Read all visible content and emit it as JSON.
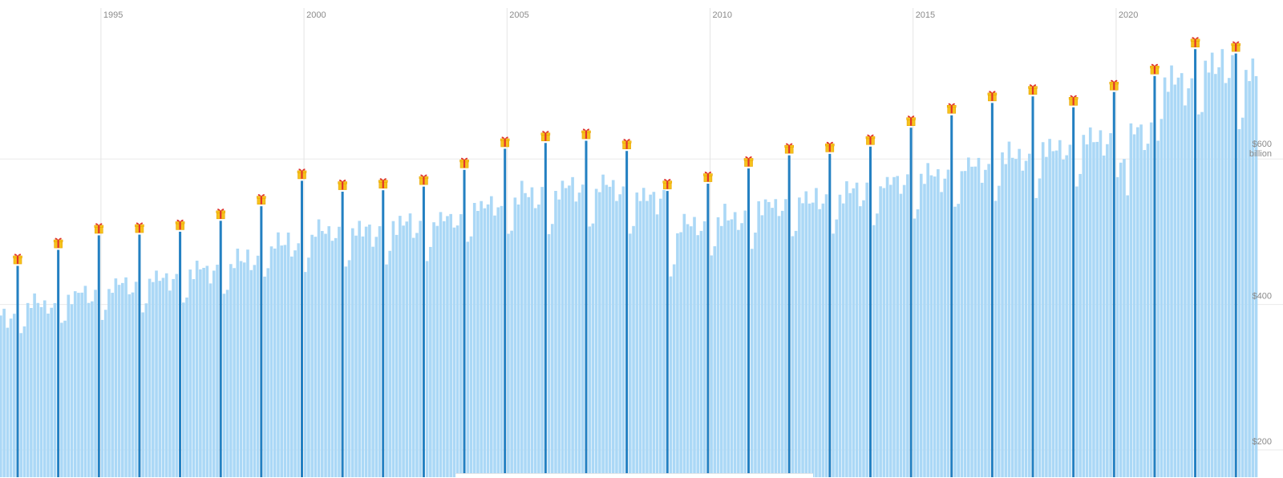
{
  "chart_data": {
    "type": "bar",
    "title": "",
    "xlabel": "",
    "ylabel": "",
    "frequency": "monthly",
    "x_start": "1992-07",
    "x_end": "2023-06",
    "ylim": [
      150,
      800
    ],
    "y_ticks": [
      {
        "value": 200,
        "label": "$200"
      },
      {
        "value": 400,
        "label": "$400"
      },
      {
        "value": 600,
        "label": "$600 billion"
      }
    ],
    "x_ticks": [
      {
        "year": 1995,
        "label": "1995"
      },
      {
        "year": 2000,
        "label": "2000"
      },
      {
        "year": 2005,
        "label": "2005"
      },
      {
        "year": 2010,
        "label": "2010"
      },
      {
        "year": 2015,
        "label": "2015"
      },
      {
        "year": 2020,
        "label": "2020"
      }
    ],
    "december_highlight": {
      "color": "#2380c2",
      "marker": "gift-icon"
    },
    "regular_color": "#abd8f6",
    "grid": true,
    "regular_month_baseline": [
      {
        "year": 1992,
        "value": 378
      },
      {
        "year": 1993,
        "value": 393
      },
      {
        "year": 1994,
        "value": 405
      },
      {
        "year": 1995,
        "value": 418
      },
      {
        "year": 1996,
        "value": 430
      },
      {
        "year": 1997,
        "value": 440
      },
      {
        "year": 1998,
        "value": 452
      },
      {
        "year": 1999,
        "value": 475
      },
      {
        "year": 2000,
        "value": 492
      },
      {
        "year": 2001,
        "value": 492
      },
      {
        "year": 2002,
        "value": 500
      },
      {
        "year": 2003,
        "value": 507
      },
      {
        "year": 2004,
        "value": 525
      },
      {
        "year": 2005,
        "value": 540
      },
      {
        "year": 2006,
        "value": 547
      },
      {
        "year": 2007,
        "value": 550
      },
      {
        "year": 2008,
        "value": 537
      },
      {
        "year": 2009,
        "value": 500
      },
      {
        "year": 2010,
        "value": 512
      },
      {
        "year": 2011,
        "value": 527
      },
      {
        "year": 2012,
        "value": 535
      },
      {
        "year": 2013,
        "value": 545
      },
      {
        "year": 2014,
        "value": 557
      },
      {
        "year": 2015,
        "value": 570
      },
      {
        "year": 2016,
        "value": 578
      },
      {
        "year": 2017,
        "value": 592
      },
      {
        "year": 2018,
        "value": 605
      },
      {
        "year": 2019,
        "value": 615
      },
      {
        "year": 2020,
        "value": 625
      },
      {
        "year": 2021,
        "value": 690
      },
      {
        "year": 2022,
        "value": 715
      },
      {
        "year": 2023,
        "value": 708
      }
    ],
    "december_values": [
      {
        "year": 1992,
        "value": 453
      },
      {
        "year": 1993,
        "value": 475
      },
      {
        "year": 1994,
        "value": 495
      },
      {
        "year": 1995,
        "value": 496
      },
      {
        "year": 1996,
        "value": 500
      },
      {
        "year": 1997,
        "value": 515
      },
      {
        "year": 1998,
        "value": 535
      },
      {
        "year": 1999,
        "value": 570
      },
      {
        "year": 2000,
        "value": 555
      },
      {
        "year": 2001,
        "value": 557
      },
      {
        "year": 2002,
        "value": 562
      },
      {
        "year": 2003,
        "value": 585
      },
      {
        "year": 2004,
        "value": 614
      },
      {
        "year": 2005,
        "value": 622
      },
      {
        "year": 2006,
        "value": 625
      },
      {
        "year": 2007,
        "value": 611
      },
      {
        "year": 2008,
        "value": 556
      },
      {
        "year": 2009,
        "value": 566
      },
      {
        "year": 2010,
        "value": 587
      },
      {
        "year": 2011,
        "value": 605
      },
      {
        "year": 2012,
        "value": 607
      },
      {
        "year": 2013,
        "value": 617
      },
      {
        "year": 2014,
        "value": 643
      },
      {
        "year": 2015,
        "value": 660
      },
      {
        "year": 2016,
        "value": 677
      },
      {
        "year": 2017,
        "value": 686
      },
      {
        "year": 2018,
        "value": 671
      },
      {
        "year": 2019,
        "value": 692
      },
      {
        "year": 2020,
        "value": 714
      },
      {
        "year": 2021,
        "value": 751
      },
      {
        "year": 2022,
        "value": 745
      }
    ]
  }
}
